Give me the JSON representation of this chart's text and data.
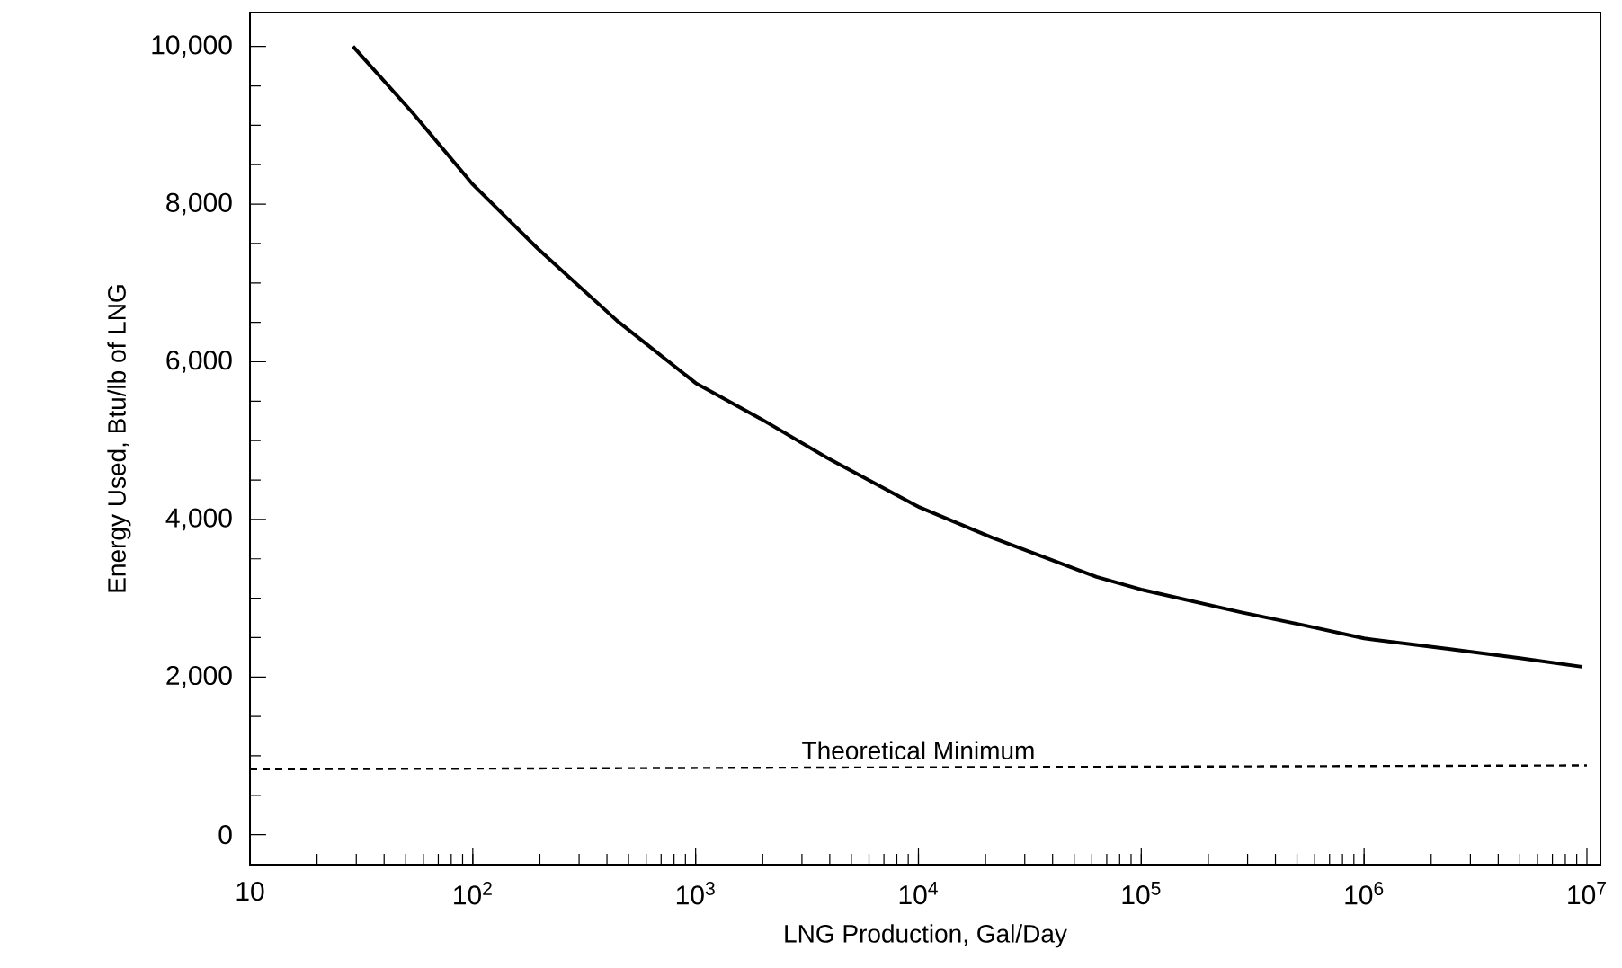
{
  "chart_data": {
    "type": "line",
    "xlabel": "LNG Production, Gal/Day",
    "ylabel": "Energy Used, Btu/lb of LNG",
    "log": "x",
    "legend": false,
    "grid": false,
    "xlim": [
      10,
      11500000
    ],
    "ylim": [
      -380,
      10430
    ],
    "xticks": [
      10,
      {
        "value": 100,
        "label": "10$^{2}$"
      },
      {
        "value": 1000,
        "label": "10$^{3}$"
      },
      {
        "value": 10000,
        "label": "10$^{4}$"
      },
      {
        "value": 100000,
        "label": "10$^{5}$"
      },
      {
        "value": 1000000,
        "label": "10$^{6}$"
      },
      {
        "value": 10000000,
        "label": "10$^{7}$"
      }
    ],
    "yticks": [
      0,
      {
        "value": 2000,
        "label": "2,000"
      },
      {
        "value": 4000,
        "label": "4,000"
      },
      {
        "value": 6000,
        "label": "6,000"
      },
      {
        "value": 8000,
        "label": "8,000"
      },
      {
        "value": 10000,
        "label": "10,000"
      }
    ],
    "series": [
      {
        "color": "#000000",
        "line_style": "solid",
        "x": [
          29,
          54,
          100,
          195,
          444,
          1000,
          1950,
          3900,
          10000,
          21400,
          33000,
          63000,
          100000,
          282000,
          530000,
          1000000,
          2350000,
          5000000,
          9500000
        ],
        "values": [
          10000,
          9150,
          8250,
          7440,
          6520,
          5730,
          5280,
          4780,
          4160,
          3770,
          3570,
          3270,
          3110,
          2820,
          2660,
          2490,
          2360,
          2240,
          2130
        ]
      },
      {
        "name": "Theoretical Minimum",
        "color": "#000000",
        "line_style": "dashed",
        "x": [
          10,
          10000000
        ],
        "values": [
          830,
          880
        ]
      }
    ]
  }
}
